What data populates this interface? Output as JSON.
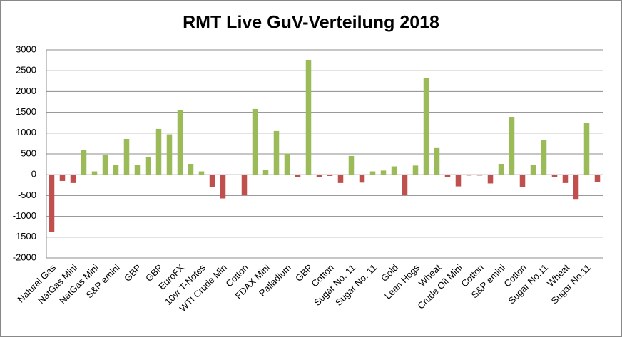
{
  "chart_data": {
    "type": "bar",
    "title": "RMT Live GuV-Verteilung 2018",
    "categories": [
      "Natural Gas",
      null,
      "NatGas Mini",
      null,
      "NatGas Mini",
      null,
      "S&P emini",
      null,
      "GBP",
      null,
      "GBP",
      null,
      "EuroFX",
      null,
      "10yr T-Notes",
      null,
      "WTI Crude Min",
      null,
      "Cotton",
      null,
      "FDAX Mini",
      null,
      "Palladium",
      null,
      "GBP",
      null,
      "Cotton",
      null,
      "Sugar No. 11",
      null,
      "Sugar No. 11",
      null,
      "Gold",
      null,
      "Lean Hogs",
      null,
      "Wheat",
      null,
      "Crude Oil Mini",
      null,
      "Cotton",
      null,
      "S&P emini",
      null,
      "Cotton",
      null,
      "Sugar No.11",
      null,
      "Wheat",
      null,
      "Sugar No.11",
      null
    ],
    "values": [
      -1380,
      -150,
      -200,
      590,
      80,
      470,
      230,
      860,
      230,
      420,
      1100,
      970,
      1560,
      260,
      80,
      -300,
      -570,
      0,
      -480,
      1580,
      110,
      1050,
      510,
      -50,
      2760,
      -60,
      -30,
      -200,
      450,
      -190,
      80,
      100,
      200,
      -490,
      220,
      2330,
      640,
      -60,
      -280,
      -20,
      -20,
      -210,
      260,
      1390,
      -300,
      230,
      840,
      -60,
      -200,
      -600,
      1240,
      -170
    ],
    "positive_color": "#9bbb59",
    "negative_color": "#c0504d",
    "ylim": [
      -2000,
      3000
    ],
    "yticks": [
      -2000,
      -1500,
      -1000,
      -500,
      0,
      500,
      1000,
      1500,
      2000,
      2500,
      3000
    ],
    "grid": true
  }
}
